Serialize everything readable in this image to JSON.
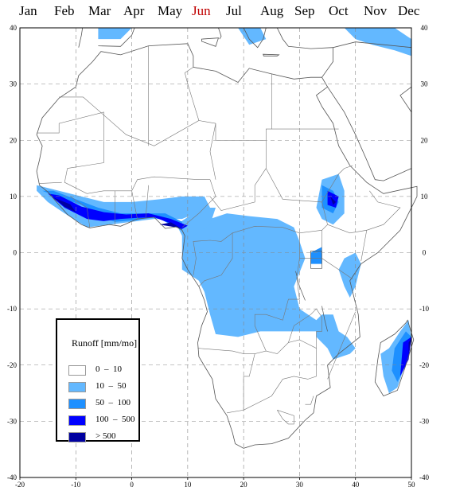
{
  "months": {
    "items": [
      "Jan",
      "Feb",
      "Mar",
      "Apr",
      "May",
      "Jun",
      "Jul",
      "Aug",
      "Sep",
      "Oct",
      "Nov",
      "Dec"
    ],
    "selected": "Jun",
    "selected_color": "#c00000"
  },
  "axes": {
    "x_ticks": [
      "-20",
      "-10",
      "0",
      "10",
      "20",
      "30",
      "40",
      "50"
    ],
    "y_ticks_left": [
      "40",
      "30",
      "20",
      "10",
      "0",
      "-10",
      "-20",
      "-30",
      "-40"
    ],
    "y_ticks_right": [
      "40",
      "30",
      "20",
      "10",
      "0",
      "-10",
      "-20",
      "-30",
      "-40"
    ],
    "lon_range": [
      -20,
      50
    ],
    "lat_range": [
      -40,
      40
    ],
    "grid": "dashed"
  },
  "legend": {
    "title": "Runoff [mm/mo]",
    "classes": [
      {
        "label": "0  –  10",
        "color": "#ffffff"
      },
      {
        "label": "10  –  50",
        "color": "#63b8ff"
      },
      {
        "label": "50  –  100",
        "color": "#1e90ff"
      },
      {
        "label": "100  –  500",
        "color": "#0000ff"
      },
      {
        "label": "> 500",
        "color": "#0000a0"
      }
    ]
  }
}
